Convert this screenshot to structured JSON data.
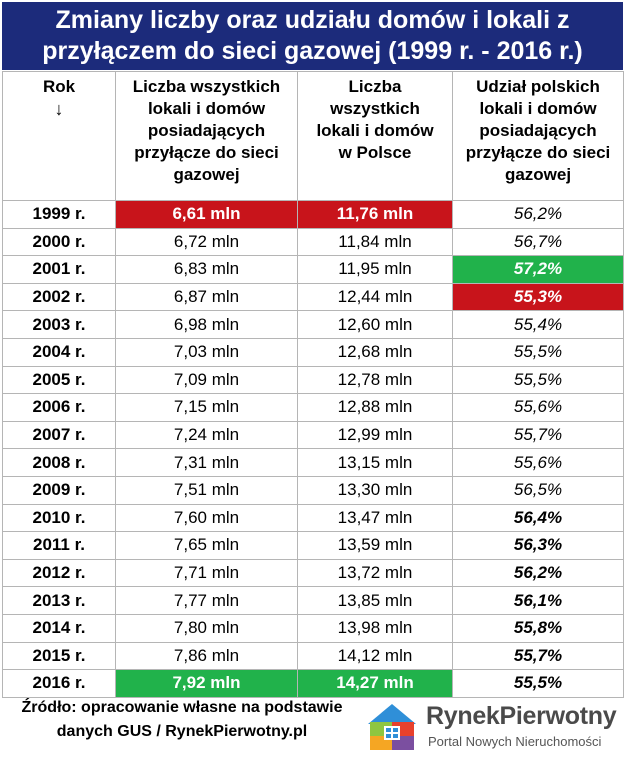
{
  "title": {
    "line1": "Zmiany liczby oraz udziału domów i lokali z",
    "line2": "przyłączem do sieci gazowej (1999 r. - 2016 r.)"
  },
  "columns": {
    "year": "Rok",
    "year_arrow": "↓",
    "connected": "Liczba wszystkich lokali i domów posiadających przyłącze do sieci gazowej",
    "total": "Liczba wszystkich lokali i domów w Polsce",
    "share": "Udział polskich lokali i domów posiadających przyłącze do sieci gazowej"
  },
  "rows": [
    {
      "year": "1999 r.",
      "connected": "6,61 mln",
      "total": "11,76 mln",
      "share": "56,2%"
    },
    {
      "year": "2000 r.",
      "connected": "6,72 mln",
      "total": "11,84 mln",
      "share": "56,7%"
    },
    {
      "year": "2001 r.",
      "connected": "6,83 mln",
      "total": "11,95 mln",
      "share": "57,2%"
    },
    {
      "year": "2002 r.",
      "connected": "6,87 mln",
      "total": "12,44 mln",
      "share": "55,3%"
    },
    {
      "year": "2003 r.",
      "connected": "6,98 mln",
      "total": "12,60 mln",
      "share": "55,4%"
    },
    {
      "year": "2004 r.",
      "connected": "7,03 mln",
      "total": "12,68 mln",
      "share": "55,5%"
    },
    {
      "year": "2005 r.",
      "connected": "7,09 mln",
      "total": "12,78 mln",
      "share": "55,5%"
    },
    {
      "year": "2006 r.",
      "connected": "7,15 mln",
      "total": "12,88 mln",
      "share": "55,6%"
    },
    {
      "year": "2007 r.",
      "connected": "7,24 mln",
      "total": "12,99 mln",
      "share": "55,7%"
    },
    {
      "year": "2008 r.",
      "connected": "7,31 mln",
      "total": "13,15 mln",
      "share": "55,6%"
    },
    {
      "year": "2009 r.",
      "connected": "7,51 mln",
      "total": "13,30 mln",
      "share": "56,5%"
    },
    {
      "year": "2010 r.",
      "connected": "7,60 mln",
      "total": "13,47 mln",
      "share": "56,4%"
    },
    {
      "year": "2011 r.",
      "connected": "7,65 mln",
      "total": "13,59 mln",
      "share": "56,3%"
    },
    {
      "year": "2012 r.",
      "connected": "7,71 mln",
      "total": "13,72 mln",
      "share": "56,2%"
    },
    {
      "year": "2013 r.",
      "connected": "7,77 mln",
      "total": "13,85 mln",
      "share": "56,1%"
    },
    {
      "year": "2014 r.",
      "connected": "7,80 mln",
      "total": "13,98 mln",
      "share": "55,8%"
    },
    {
      "year": "2015 r.",
      "connected": "7,86 mln",
      "total": "14,12 mln",
      "share": "55,7%"
    },
    {
      "year": "2016 r.",
      "connected": "7,92 mln",
      "total": "14,27 mln",
      "share": "55,5%"
    }
  ],
  "footer": {
    "line1": "Źródło: opracowanie własne na podstawie",
    "line2": "danych GUS / RynekPierwotny.pl"
  },
  "logo": {
    "name": "RynekPierwotny",
    "tagline": "Portal Nowych Nieruchomości"
  },
  "colors": {
    "title_bg": "#1c2b7b",
    "highlight_red": "#c8141b",
    "highlight_green": "#21b24b"
  }
}
